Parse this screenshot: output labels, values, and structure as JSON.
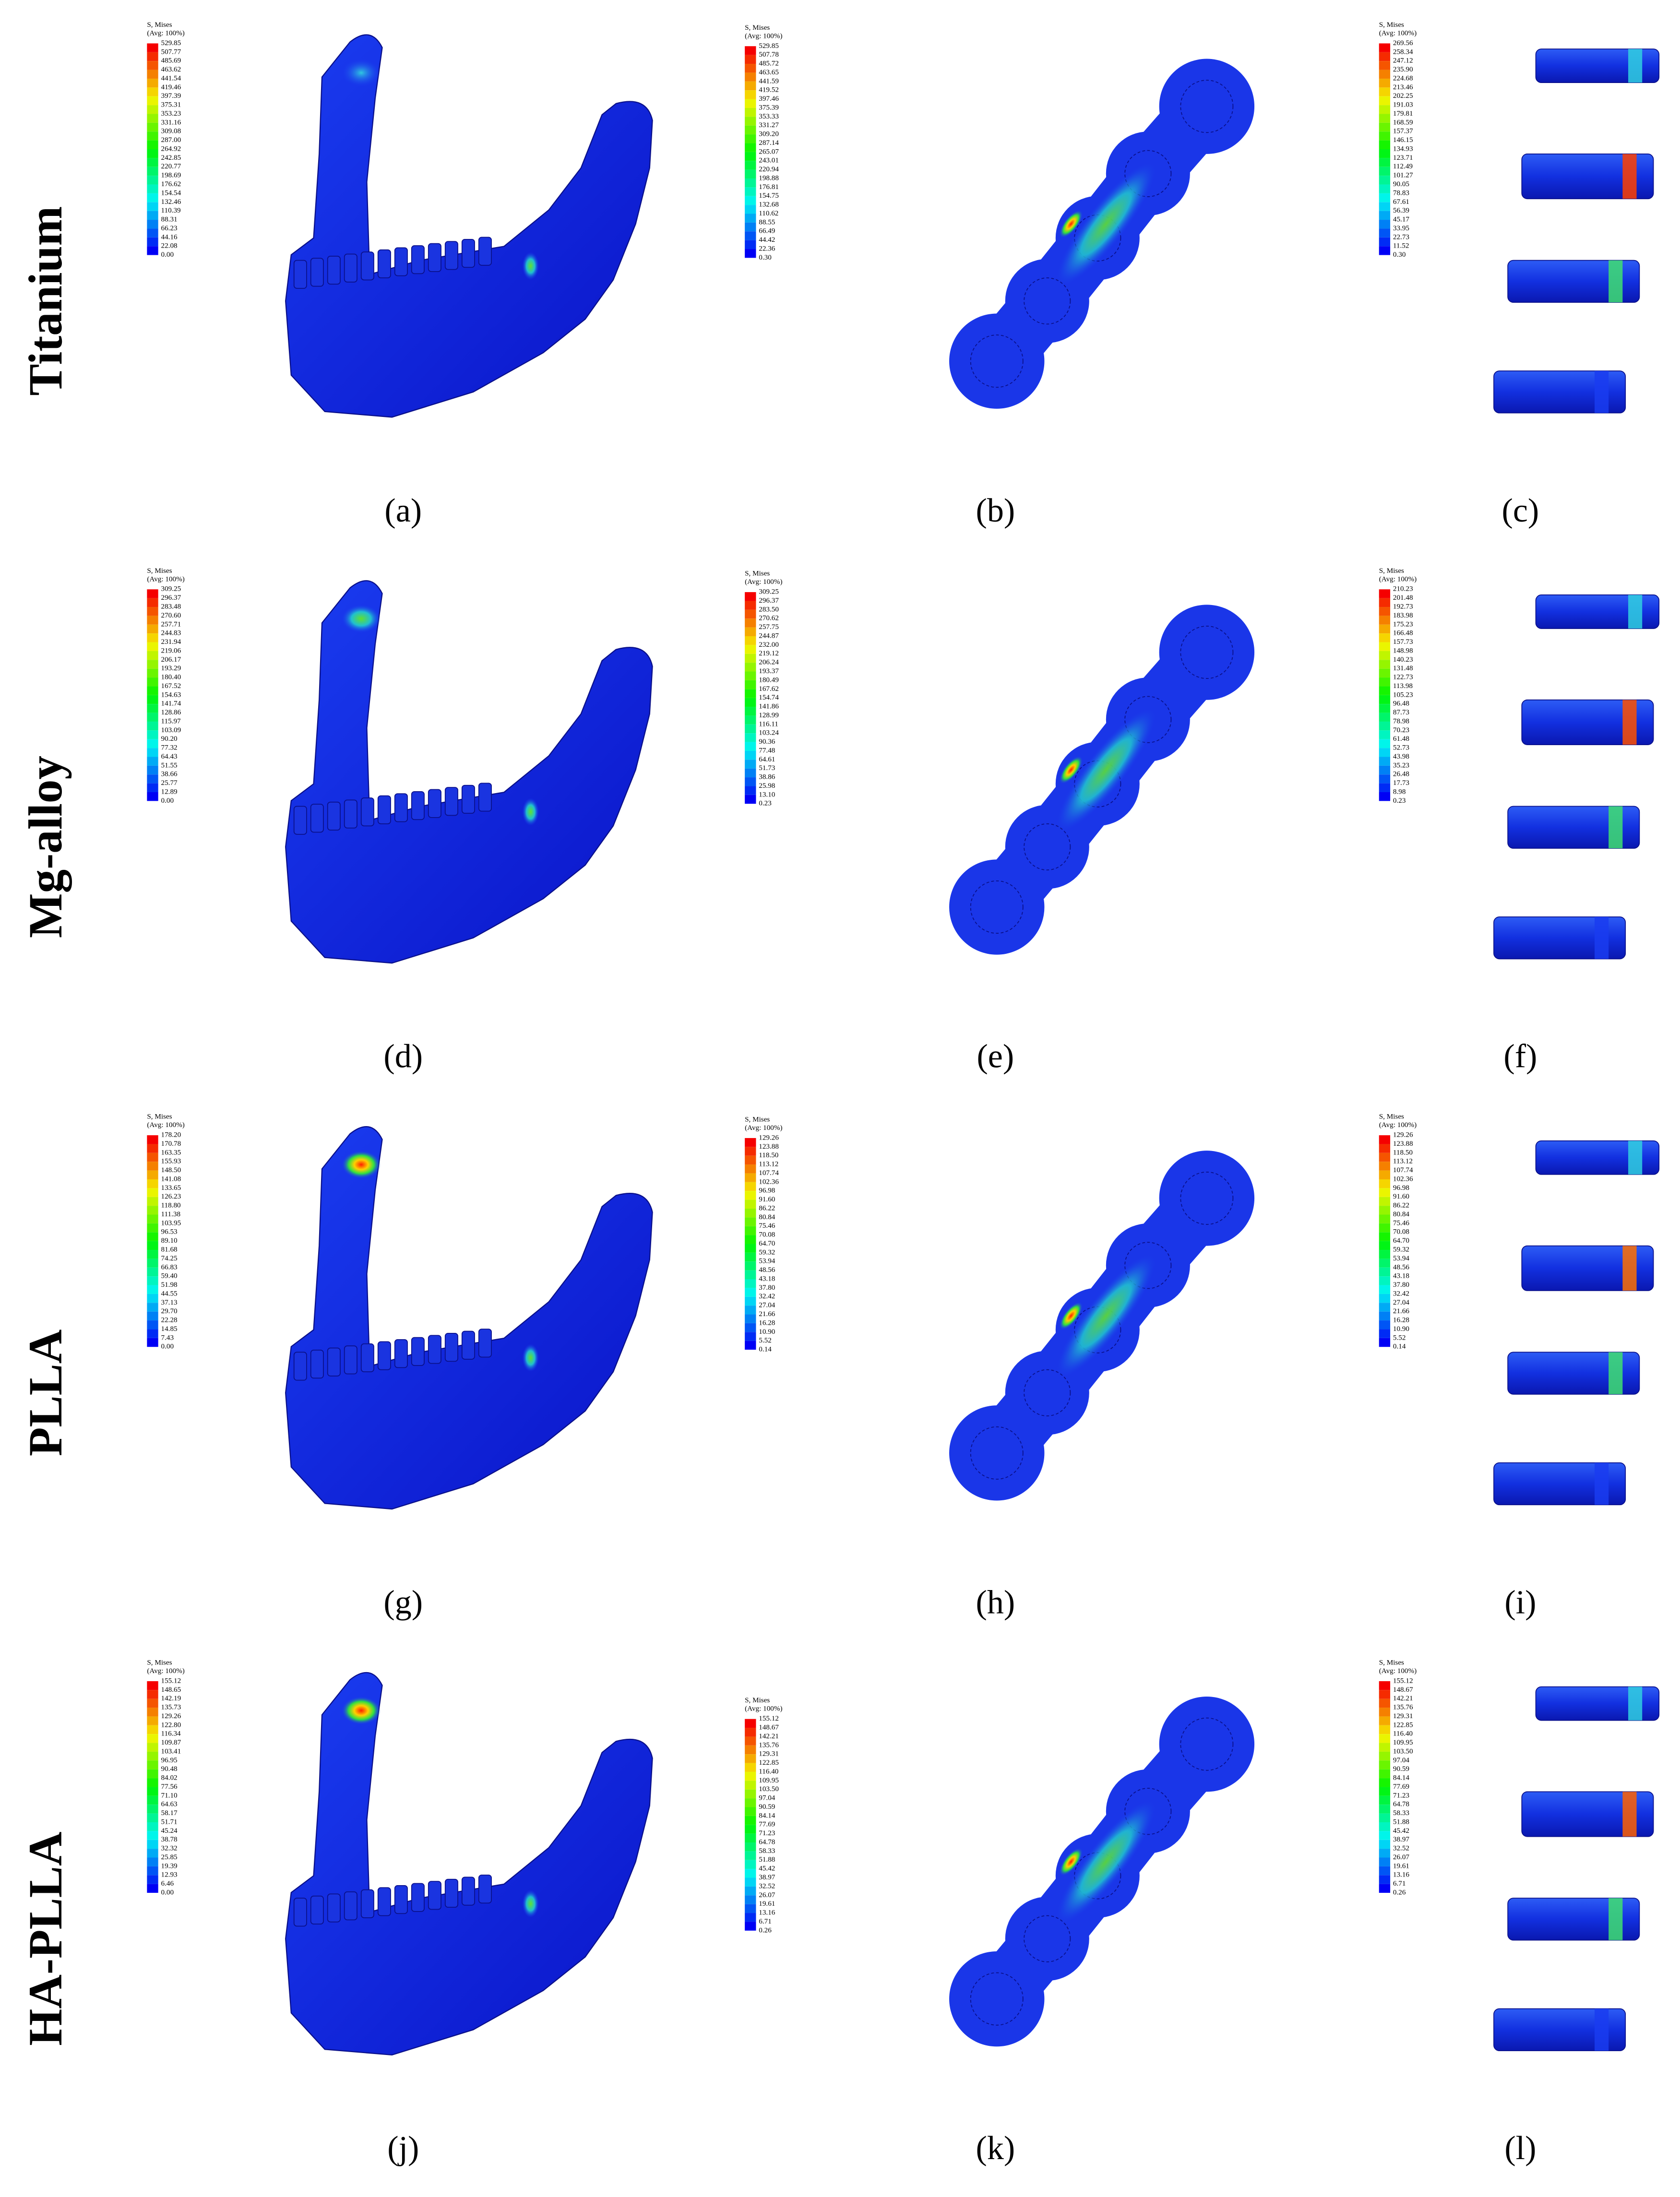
{
  "rows": [
    {
      "label": "Titanium",
      "panels": [
        {
          "label": "(a)",
          "legend": {
            "title": "S, Mises",
            "subtitle": "(Avg: 100%)",
            "values": [
              "529.85",
              "507.77",
              "485.69",
              "463.62",
              "441.54",
              "419.46",
              "397.39",
              "375.31",
              "353.23",
              "331.16",
              "309.08",
              "287.00",
              "264.92",
              "242.85",
              "220.77",
              "198.69",
              "176.62",
              "154.54",
              "132.46",
              "110.39",
              "88.31",
              "66.23",
              "44.16",
              "22.08",
              "0.00"
            ]
          }
        },
        {
          "label": "(b)",
          "legend": {
            "title": "S, Mises",
            "subtitle": "(Avg: 100%)",
            "values": [
              "529.85",
              "507.78",
              "485.72",
              "463.65",
              "441.59",
              "419.52",
              "397.46",
              "375.39",
              "353.33",
              "331.27",
              "309.20",
              "287.14",
              "265.07",
              "243.01",
              "220.94",
              "198.88",
              "176.81",
              "154.75",
              "132.68",
              "110.62",
              "88.55",
              "66.49",
              "44.42",
              "22.36",
              "0.30"
            ]
          }
        },
        {
          "label": "(c)",
          "legend": {
            "title": "S, Mises",
            "subtitle": "(Avg: 100%)",
            "values": [
              "269.56",
              "258.34",
              "247.12",
              "235.90",
              "224.68",
              "213.46",
              "202.25",
              "191.03",
              "179.81",
              "168.59",
              "157.37",
              "146.15",
              "134.93",
              "123.71",
              "112.49",
              "101.27",
              "90.05",
              "78.83",
              "67.61",
              "56.39",
              "45.17",
              "33.95",
              "22.73",
              "11.52",
              "0.30"
            ]
          }
        }
      ]
    },
    {
      "label": "Mg-alloy",
      "panels": [
        {
          "label": "(d)",
          "legend": {
            "title": "S, Mises",
            "subtitle": "(Avg: 100%)",
            "values": [
              "309.25",
              "296.37",
              "283.48",
              "270.60",
              "257.71",
              "244.83",
              "231.94",
              "219.06",
              "206.17",
              "193.29",
              "180.40",
              "167.52",
              "154.63",
              "141.74",
              "128.86",
              "115.97",
              "103.09",
              "90.20",
              "77.32",
              "64.43",
              "51.55",
              "38.66",
              "25.77",
              "12.89",
              "0.00"
            ]
          }
        },
        {
          "label": "(e)",
          "legend": {
            "title": "S, Mises",
            "subtitle": "(Avg: 100%)",
            "values": [
              "309.25",
              "296.37",
              "283.50",
              "270.62",
              "257.75",
              "244.87",
              "232.00",
              "219.12",
              "206.24",
              "193.37",
              "180.49",
              "167.62",
              "154.74",
              "141.86",
              "128.99",
              "116.11",
              "103.24",
              "90.36",
              "77.48",
              "64.61",
              "51.73",
              "38.86",
              "25.98",
              "13.10",
              "0.23"
            ]
          }
        },
        {
          "label": "(f)",
          "legend": {
            "title": "S, Mises",
            "subtitle": "(Avg: 100%)",
            "values": [
              "210.23",
              "201.48",
              "192.73",
              "183.98",
              "175.23",
              "166.48",
              "157.73",
              "148.98",
              "140.23",
              "131.48",
              "122.73",
              "113.98",
              "105.23",
              "96.48",
              "87.73",
              "78.98",
              "70.23",
              "61.48",
              "52.73",
              "43.98",
              "35.23",
              "26.48",
              "17.73",
              "8.98",
              "0.23"
            ]
          }
        }
      ]
    },
    {
      "label": "PLLA",
      "panels": [
        {
          "label": "(g)",
          "legend": {
            "title": "S, Mises",
            "subtitle": "(Avg: 100%)",
            "values": [
              "178.20",
              "170.78",
              "163.35",
              "155.93",
              "148.50",
              "141.08",
              "133.65",
              "126.23",
              "118.80",
              "111.38",
              "103.95",
              "96.53",
              "89.10",
              "81.68",
              "74.25",
              "66.83",
              "59.40",
              "51.98",
              "44.55",
              "37.13",
              "29.70",
              "22.28",
              "14.85",
              "7.43",
              "0.00"
            ]
          }
        },
        {
          "label": "(h)",
          "legend": {
            "title": "S, Mises",
            "subtitle": "(Avg: 100%)",
            "values": [
              "129.26",
              "123.88",
              "118.50",
              "113.12",
              "107.74",
              "102.36",
              "96.98",
              "91.60",
              "86.22",
              "80.84",
              "75.46",
              "70.08",
              "64.70",
              "59.32",
              "53.94",
              "48.56",
              "43.18",
              "37.80",
              "32.42",
              "27.04",
              "21.66",
              "16.28",
              "10.90",
              "5.52",
              "0.14"
            ]
          }
        },
        {
          "label": "(i)",
          "legend": {
            "title": "S, Mises",
            "subtitle": "(Avg: 100%)",
            "values": [
              "129.26",
              "123.88",
              "118.50",
              "113.12",
              "107.74",
              "102.36",
              "96.98",
              "91.60",
              "86.22",
              "80.84",
              "75.46",
              "70.08",
              "64.70",
              "59.32",
              "53.94",
              "48.56",
              "43.18",
              "37.80",
              "32.42",
              "27.04",
              "21.66",
              "16.28",
              "10.90",
              "5.52",
              "0.14"
            ]
          }
        }
      ]
    },
    {
      "label": "HA-PLLA",
      "panels": [
        {
          "label": "(j)",
          "legend": {
            "title": "S, Mises",
            "subtitle": "(Avg: 100%)",
            "values": [
              "155.12",
              "148.65",
              "142.19",
              "135.73",
              "129.26",
              "122.80",
              "116.34",
              "109.87",
              "103.41",
              "96.95",
              "90.48",
              "84.02",
              "77.56",
              "71.10",
              "64.63",
              "58.17",
              "51.71",
              "45.24",
              "38.78",
              "32.32",
              "25.85",
              "19.39",
              "12.93",
              "6.46",
              "0.00"
            ]
          }
        },
        {
          "label": "(k)",
          "legend": {
            "title": "S, Mises",
            "subtitle": "(Avg: 100%)",
            "values": [
              "155.12",
              "148.67",
              "142.21",
              "135.76",
              "129.31",
              "122.85",
              "116.40",
              "109.95",
              "103.50",
              "97.04",
              "90.59",
              "84.14",
              "77.69",
              "71.23",
              "64.78",
              "58.33",
              "51.88",
              "45.42",
              "38.97",
              "32.52",
              "26.07",
              "19.61",
              "13.16",
              "6.71",
              "0.26"
            ]
          }
        },
        {
          "label": "(l)",
          "legend": {
            "title": "S, Mises",
            "subtitle": "(Avg: 100%)",
            "values": [
              "155.12",
              "148.67",
              "142.21",
              "135.76",
              "129.31",
              "122.85",
              "116.40",
              "109.95",
              "103.50",
              "97.04",
              "90.59",
              "84.14",
              "77.69",
              "71.23",
              "64.78",
              "58.33",
              "51.88",
              "45.42",
              "38.97",
              "32.52",
              "26.07",
              "19.61",
              "13.16",
              "6.71",
              "0.26"
            ]
          }
        }
      ]
    }
  ]
}
